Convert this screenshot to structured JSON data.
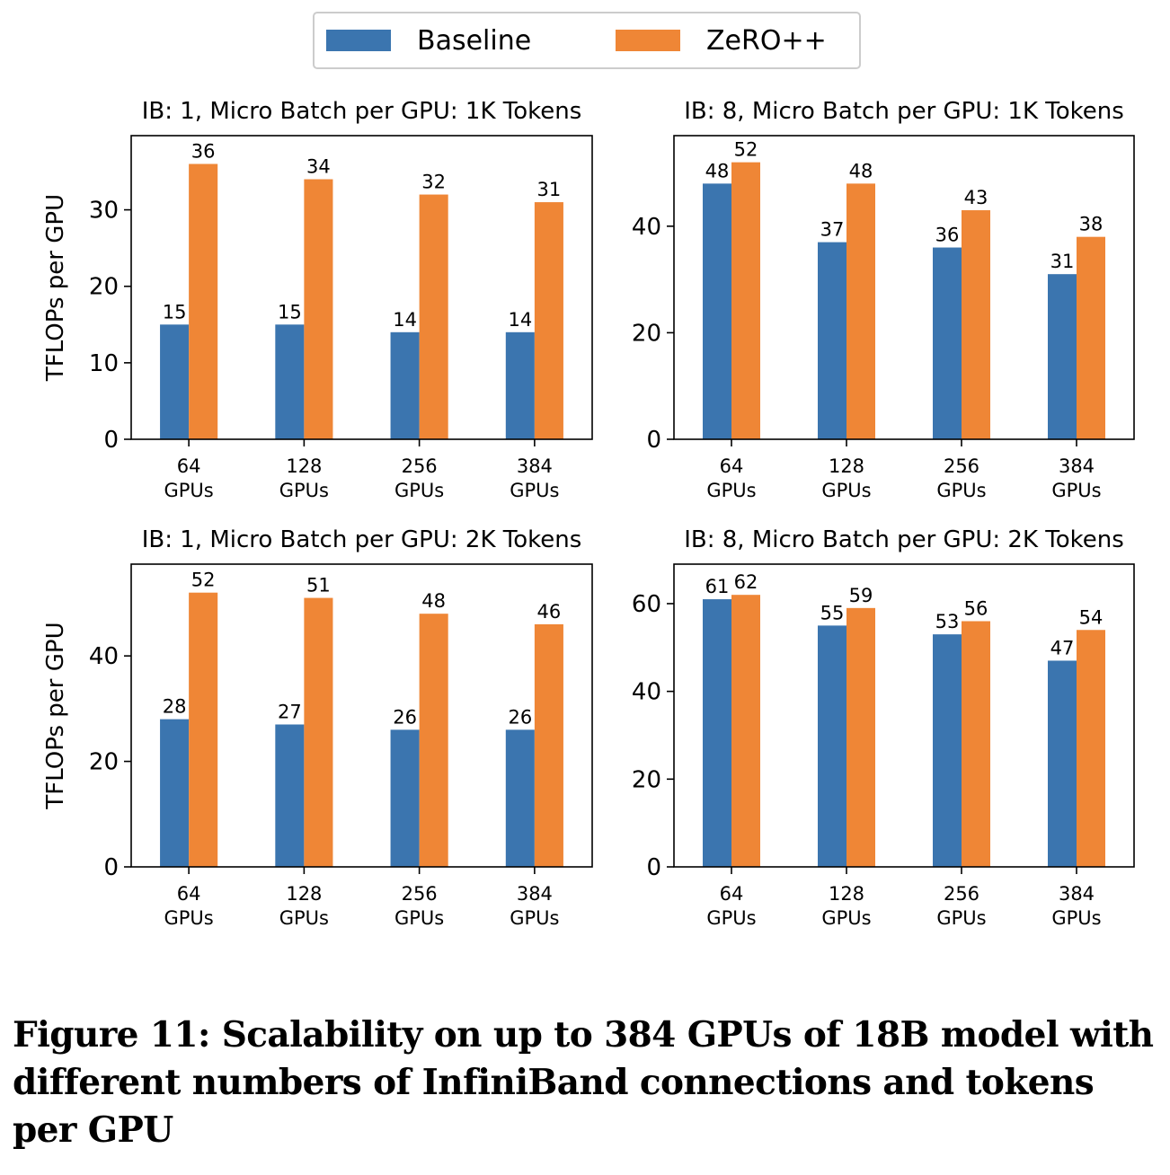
{
  "legend": [
    {
      "name": "Baseline",
      "color": "#3b75af"
    },
    {
      "name": "ZeRO++",
      "color": "#ef8636"
    }
  ],
  "caption": "Figure 11: Scalability on up to 384 GPUs of 18B model with different numbers of InfiniBand connections and tokens per GPU",
  "chart_data": [
    {
      "type": "bar",
      "title": "IB: 1, Micro Batch per GPU: 1K Tokens",
      "ylabel": "TFLOPs per GPU",
      "categories": [
        "64\nGPUs",
        "128\nGPUs",
        "256\nGPUs",
        "384\nGPUs"
      ],
      "series": [
        {
          "name": "Baseline",
          "values": [
            15,
            15,
            14,
            14
          ]
        },
        {
          "name": "ZeRO++",
          "values": [
            36,
            34,
            32,
            31
          ]
        }
      ],
      "ylim": [
        0,
        39.7
      ],
      "yticks": [
        0,
        10,
        20,
        30
      ]
    },
    {
      "type": "bar",
      "title": "IB: 8, Micro Batch per GPU: 1K Tokens",
      "ylabel": "",
      "categories": [
        "64\nGPUs",
        "128\nGPUs",
        "256\nGPUs",
        "384\nGPUs"
      ],
      "series": [
        {
          "name": "Baseline",
          "values": [
            48,
            37,
            36,
            31
          ]
        },
        {
          "name": "ZeRO++",
          "values": [
            52,
            48,
            43,
            38
          ]
        }
      ],
      "ylim": [
        0,
        57
      ],
      "yticks": [
        0,
        20,
        40
      ]
    },
    {
      "type": "bar",
      "title": "IB: 1, Micro Batch per GPU: 2K Tokens",
      "ylabel": "TFLOPs per GPU",
      "categories": [
        "64\nGPUs",
        "128\nGPUs",
        "256\nGPUs",
        "384\nGPUs"
      ],
      "series": [
        {
          "name": "Baseline",
          "values": [
            28,
            27,
            26,
            26
          ]
        },
        {
          "name": "ZeRO++",
          "values": [
            52,
            51,
            48,
            46
          ]
        }
      ],
      "ylim": [
        0,
        57.4
      ],
      "yticks": [
        0,
        20,
        40
      ]
    },
    {
      "type": "bar",
      "title": "IB: 8, Micro Batch per GPU: 2K Tokens",
      "ylabel": "",
      "categories": [
        "64\nGPUs",
        "128\nGPUs",
        "256\nGPUs",
        "384\nGPUs"
      ],
      "series": [
        {
          "name": "Baseline",
          "values": [
            61,
            55,
            53,
            47
          ]
        },
        {
          "name": "ZeRO++",
          "values": [
            62,
            59,
            56,
            54
          ]
        }
      ],
      "ylim": [
        0,
        69
      ],
      "yticks": [
        0,
        20,
        40,
        60
      ]
    }
  ]
}
